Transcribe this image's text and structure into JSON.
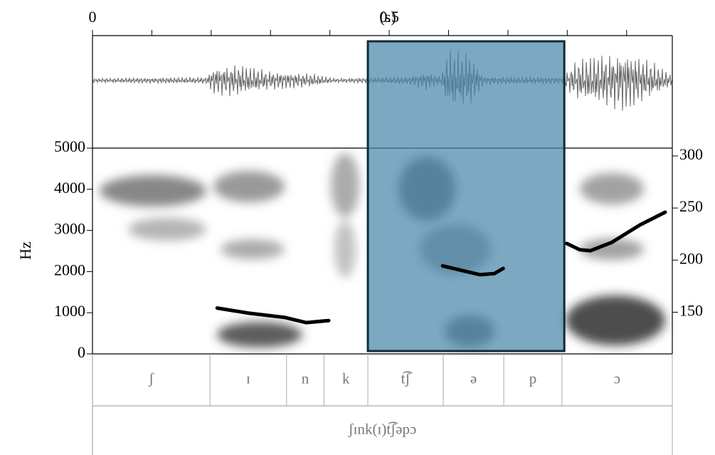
{
  "chart_data": {
    "type": "spectrogram",
    "xlabel": "(s)",
    "ylabel": "Hz",
    "xlim": [
      0,
      0.977
    ],
    "xticks": [
      0,
      0.5
    ],
    "xminorticks": [
      0.1,
      0.2,
      0.3,
      0.4,
      0.6,
      0.7,
      0.8,
      0.9
    ],
    "ylim": [
      0,
      5000
    ],
    "yticks": [
      0,
      1000,
      2000,
      3000,
      4000,
      5000
    ],
    "y2lim": [
      110,
      307.5
    ],
    "y2ticks": [
      150,
      200,
      250,
      300
    ],
    "selection": [
      0.464,
      0.795
    ],
    "selection_color": "#4a87a9",
    "series": [
      {
        "axis": "y2",
        "color": "#000000",
        "x": [
          0.21,
          0.264,
          0.324,
          0.36,
          0.398,
          0.5,
          0.59,
          0.623,
          0.653,
          0.677,
          0.692,
          0.75,
          0.799,
          0.821,
          0.839,
          0.875,
          0.923,
          0.965
        ],
        "values": [
          154,
          149,
          145,
          140,
          142,
          null,
          194.5,
          190,
          186,
          187,
          192,
          null,
          216,
          210,
          209,
          217,
          234,
          246
        ]
      }
    ],
    "tiers": [
      {
        "intervals": [
          {
            "label": "ʃ",
            "xmin": 0,
            "xmax": 0.198
          },
          {
            "label": "ɪ",
            "xmin": 0.198,
            "xmax": 0.327
          },
          {
            "label": "n",
            "xmin": 0.327,
            "xmax": 0.39
          },
          {
            "label": "k",
            "xmin": 0.39,
            "xmax": 0.464
          },
          {
            "label": "t͡ʃ",
            "xmin": 0.464,
            "xmax": 0.591
          },
          {
            "label": "ə",
            "xmin": 0.591,
            "xmax": 0.693
          },
          {
            "label": "p",
            "xmin": 0.693,
            "xmax": 0.791
          },
          {
            "label": "ɔ",
            "xmin": 0.791,
            "xmax": 0.977
          }
        ]
      },
      {
        "intervals": [
          {
            "label": "ʃɪnk(ɪ)t͡ʃəpɔ",
            "xmin": 0,
            "xmax": 0.977
          }
        ]
      }
    ]
  }
}
